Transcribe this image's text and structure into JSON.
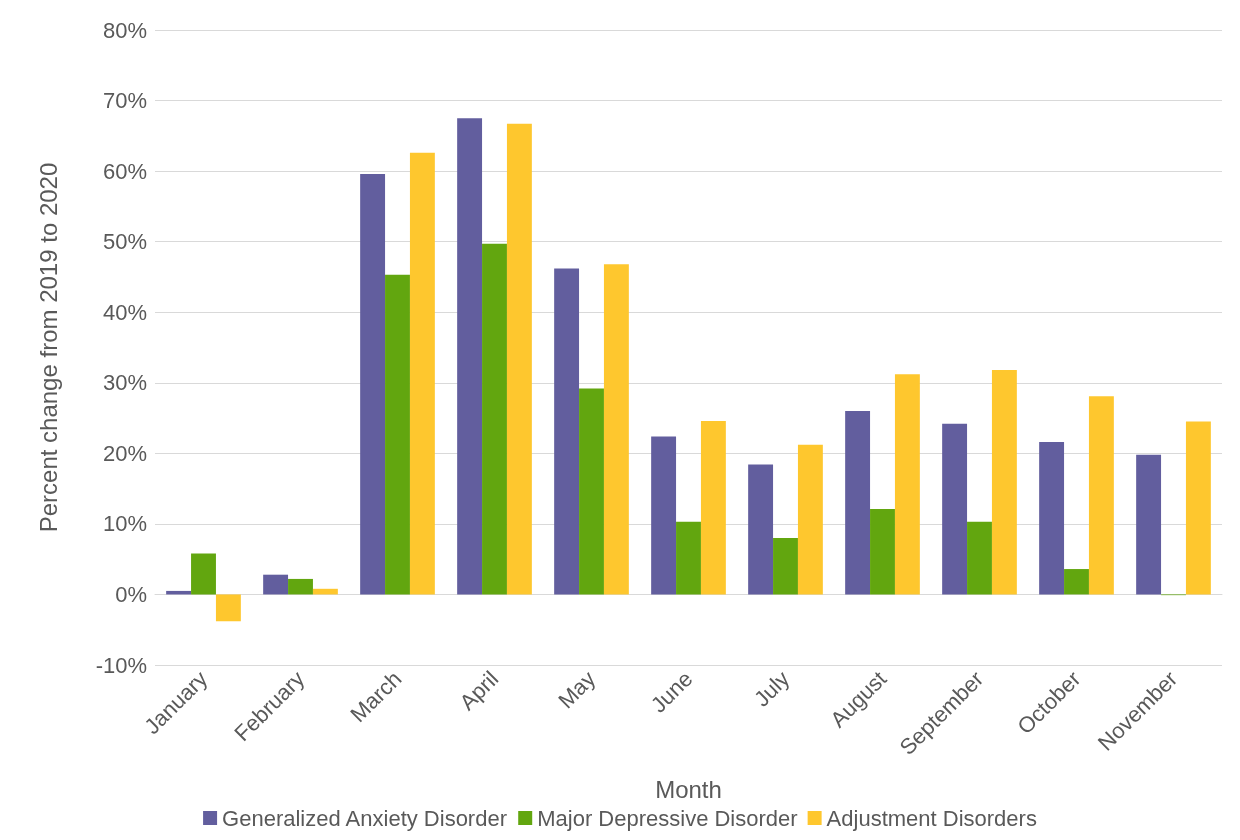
{
  "chart_data": {
    "type": "bar",
    "xlabel": "Month",
    "ylabel": "Percent change from 2019 to 2020",
    "categories": [
      "January",
      "February",
      "March",
      "April",
      "May",
      "June",
      "July",
      "August",
      "September",
      "October",
      "November"
    ],
    "series": [
      {
        "name": "Generalized Anxiety Disorder",
        "color": "#625e9e",
        "values": [
          0.5,
          2.8,
          59.6,
          67.5,
          46.2,
          22.4,
          18.4,
          26.0,
          24.2,
          21.6,
          19.8
        ]
      },
      {
        "name": "Major Depressive Disorder",
        "color": "#62a60f",
        "values": [
          5.8,
          2.2,
          45.3,
          49.7,
          29.2,
          10.3,
          8.0,
          12.1,
          10.3,
          3.6,
          -0.1
        ]
      },
      {
        "name": "Adjustment Disorders",
        "color": "#fec72e",
        "values": [
          -3.8,
          0.8,
          62.6,
          66.7,
          46.8,
          24.6,
          21.2,
          31.2,
          31.8,
          28.1,
          24.5
        ]
      }
    ],
    "ylim": [
      -10,
      80
    ],
    "yticks": [
      {
        "value": -10,
        "label": "-10%"
      },
      {
        "value": 0,
        "label": "0%"
      },
      {
        "value": 10,
        "label": "10%"
      },
      {
        "value": 20,
        "label": "20%"
      },
      {
        "value": 30,
        "label": "30%"
      },
      {
        "value": 40,
        "label": "40%"
      },
      {
        "value": 50,
        "label": "50%"
      },
      {
        "value": 60,
        "label": "60%"
      },
      {
        "value": 70,
        "label": "70%"
      },
      {
        "value": 80,
        "label": "80%"
      }
    ],
    "grid": "y",
    "legend": "bottom"
  }
}
